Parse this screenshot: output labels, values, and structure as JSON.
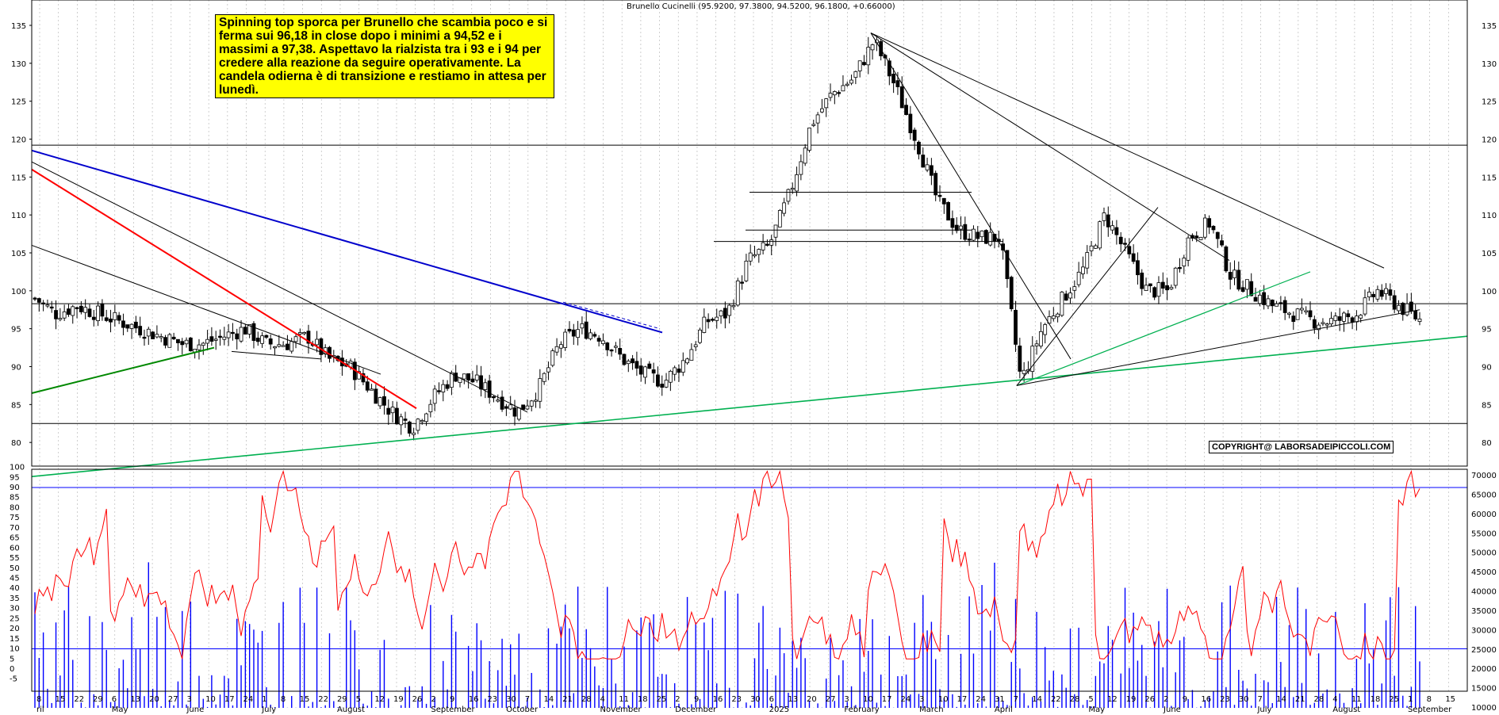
{
  "chart_title": "Brunello Cucinelli (95.9200, 97.3800, 94.5200, 96.1800, +0.66000)",
  "note_text": "Spinning top sporca per Brunello che scambia poco e si ferma sui 96,18 in close dopo i minimi a 94,52 e i massimi a 97,38. Aspettavo la rialzista tra i 93 e i 94 per credere alla reazione da seguire operativamente. La candela odierna è di transizione e restiamo in attesa per lunedì.",
  "copyright": "COPYRIGHT@ LABORSADEIPICCOLI.COM",
  "colors": {
    "trend_red": "#ff0000",
    "trend_blue": "#0000cc",
    "trend_green": "#008800",
    "trend_lightgreen": "#00b050",
    "oscillator": "#ff0000",
    "volume": "#0000ff"
  },
  "chart_data": {
    "type": "candlestick",
    "price_axis": {
      "min": 75,
      "max": 135,
      "ticks": [
        80,
        85,
        90,
        95,
        100,
        105,
        110,
        115,
        120,
        125,
        130,
        135
      ]
    },
    "oscillator_axis": {
      "ticks": [
        -5,
        0,
        5,
        10,
        15,
        20,
        25,
        30,
        35,
        40,
        45,
        50,
        55,
        60,
        65,
        70,
        75,
        80,
        85,
        90,
        95,
        100
      ],
      "levels": [
        10,
        90
      ]
    },
    "volume_axis": {
      "ticks": [
        10000,
        15000,
        20000,
        25000,
        30000,
        35000,
        40000,
        45000,
        50000,
        55000,
        60000,
        65000,
        70000
      ]
    },
    "x_tick_days": [
      "8",
      "15",
      "22",
      "29",
      "6",
      "13",
      "20",
      "27",
      "3",
      "10",
      "17",
      "24",
      "1",
      "8",
      "15",
      "22",
      "29",
      "5",
      "12",
      "19",
      "26",
      "2",
      "9",
      "16",
      "23",
      "30",
      "7",
      "14",
      "21",
      "28",
      "4",
      "11",
      "18",
      "25",
      "2",
      "9",
      "16",
      "23",
      "30",
      "6",
      "13",
      "20",
      "27",
      "3",
      "10",
      "17",
      "24",
      "3",
      "10",
      "17",
      "24",
      "31",
      "7",
      "14",
      "22",
      "28",
      "5",
      "12",
      "19",
      "26",
      "2",
      "9",
      "16",
      "23",
      "30",
      "7",
      "14",
      "21",
      "28",
      "4",
      "11",
      "18",
      "25",
      "1",
      "8",
      "15"
    ],
    "x_months": [
      {
        "label": "ril",
        "idx": 0
      },
      {
        "label": "May",
        "idx": 4
      },
      {
        "label": "June",
        "idx": 8
      },
      {
        "label": "July",
        "idx": 12
      },
      {
        "label": "August",
        "idx": 16
      },
      {
        "label": "September",
        "idx": 21
      },
      {
        "label": "October",
        "idx": 25
      },
      {
        "label": "November",
        "idx": 30
      },
      {
        "label": "December",
        "idx": 34
      },
      {
        "label": "2025",
        "idx": 39
      },
      {
        "label": "February",
        "idx": 43
      },
      {
        "label": "March",
        "idx": 47
      },
      {
        "label": "April",
        "idx": 51
      },
      {
        "label": "May",
        "idx": 56
      },
      {
        "label": "June",
        "idx": 60
      },
      {
        "label": "July",
        "idx": 65
      },
      {
        "label": "August",
        "idx": 69
      },
      {
        "label": "September",
        "idx": 73
      }
    ],
    "closes": [
      99,
      97,
      98,
      97,
      96,
      95,
      94,
      93,
      93,
      94,
      95,
      93,
      93,
      94,
      91,
      90,
      87,
      84,
      82,
      86,
      89,
      88,
      86,
      84,
      87,
      93,
      95,
      94,
      91,
      89,
      88,
      91,
      96,
      97,
      104,
      106,
      113,
      122,
      126,
      128,
      133,
      127,
      120,
      112,
      108,
      107,
      107,
      88,
      95,
      99,
      103,
      110,
      105,
      100,
      100,
      107,
      109,
      102,
      100,
      98,
      97,
      96,
      96,
      97,
      100,
      98,
      96.18
    ],
    "horizontal_levels": [
      119.2,
      98.3,
      82.5
    ],
    "last": {
      "open": 95.92,
      "high": 97.38,
      "low": 94.52,
      "close": 96.18
    }
  }
}
